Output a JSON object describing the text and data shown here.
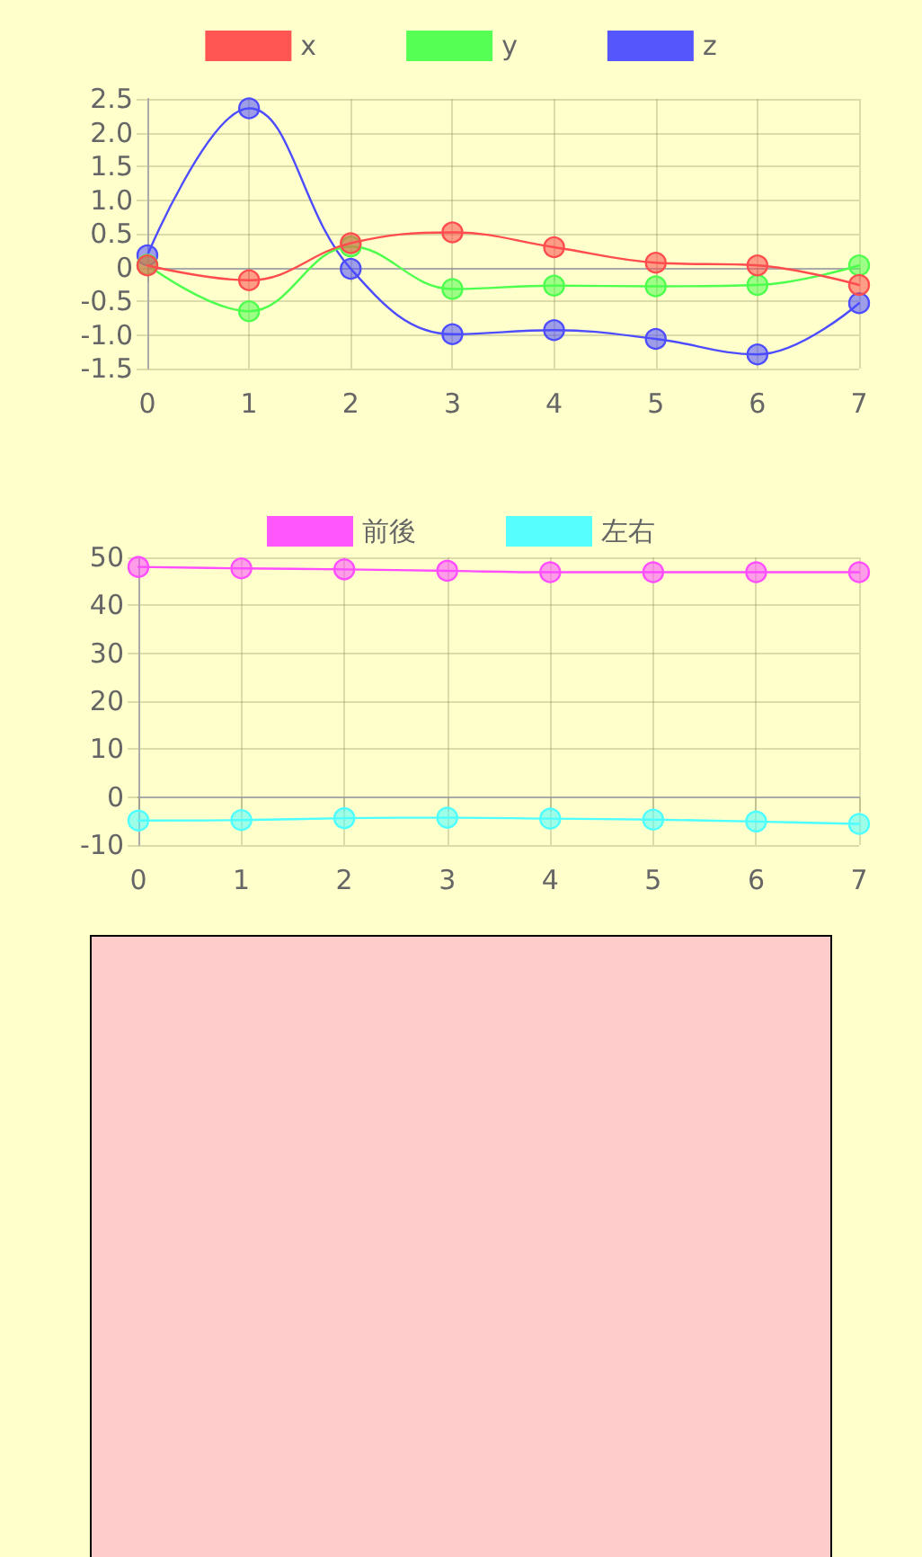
{
  "chart_data": [
    {
      "type": "line",
      "categories": [
        "0",
        "1",
        "2",
        "3",
        "4",
        "5",
        "6",
        "7"
      ],
      "ylim": [
        -1.5,
        2.5
      ],
      "yticks": [
        -1.5,
        {
          "value": -1,
          "label": "-1.0"
        },
        -0.5,
        0,
        0.5,
        {
          "value": 1,
          "label": "1.0"
        },
        1.5,
        {
          "value": 2,
          "label": "2.0"
        },
        2.5
      ],
      "grid": true,
      "legend": "top",
      "marker": "circle",
      "line_style": "solid",
      "series": [
        {
          "name": "x",
          "color": "#ff4d4d",
          "values": [
            0.03,
            -0.19,
            0.36,
            0.52,
            0.3,
            0.07,
            0.03,
            -0.26
          ]
        },
        {
          "name": "y",
          "color": "#4dff4d",
          "values": [
            0.04,
            -0.65,
            0.31,
            -0.32,
            -0.27,
            -0.28,
            -0.26,
            0.03
          ]
        },
        {
          "name": "z",
          "color": "#4d4dff",
          "values": [
            0.18,
            2.36,
            -0.02,
            -0.99,
            -0.93,
            -1.06,
            -1.29,
            -0.53
          ]
        }
      ]
    },
    {
      "type": "line",
      "categories": [
        "0",
        "1",
        "2",
        "3",
        "4",
        "5",
        "6",
        "7"
      ],
      "ylim": [
        -10,
        50
      ],
      "yticks": [
        -10,
        0,
        10,
        20,
        30,
        40,
        50
      ],
      "grid": true,
      "legend": "top",
      "marker": "circle",
      "line_style": "solid",
      "series": [
        {
          "name": "前後",
          "color": "#ff4dff",
          "values": [
            48.0,
            47.7,
            47.5,
            47.2,
            46.9,
            46.9,
            46.9,
            46.9
          ]
        },
        {
          "name": "左右",
          "color": "#4dffff",
          "values": [
            -4.9,
            -4.8,
            -4.4,
            -4.3,
            -4.5,
            -4.7,
            -5.1,
            -5.6
          ]
        }
      ]
    }
  ]
}
